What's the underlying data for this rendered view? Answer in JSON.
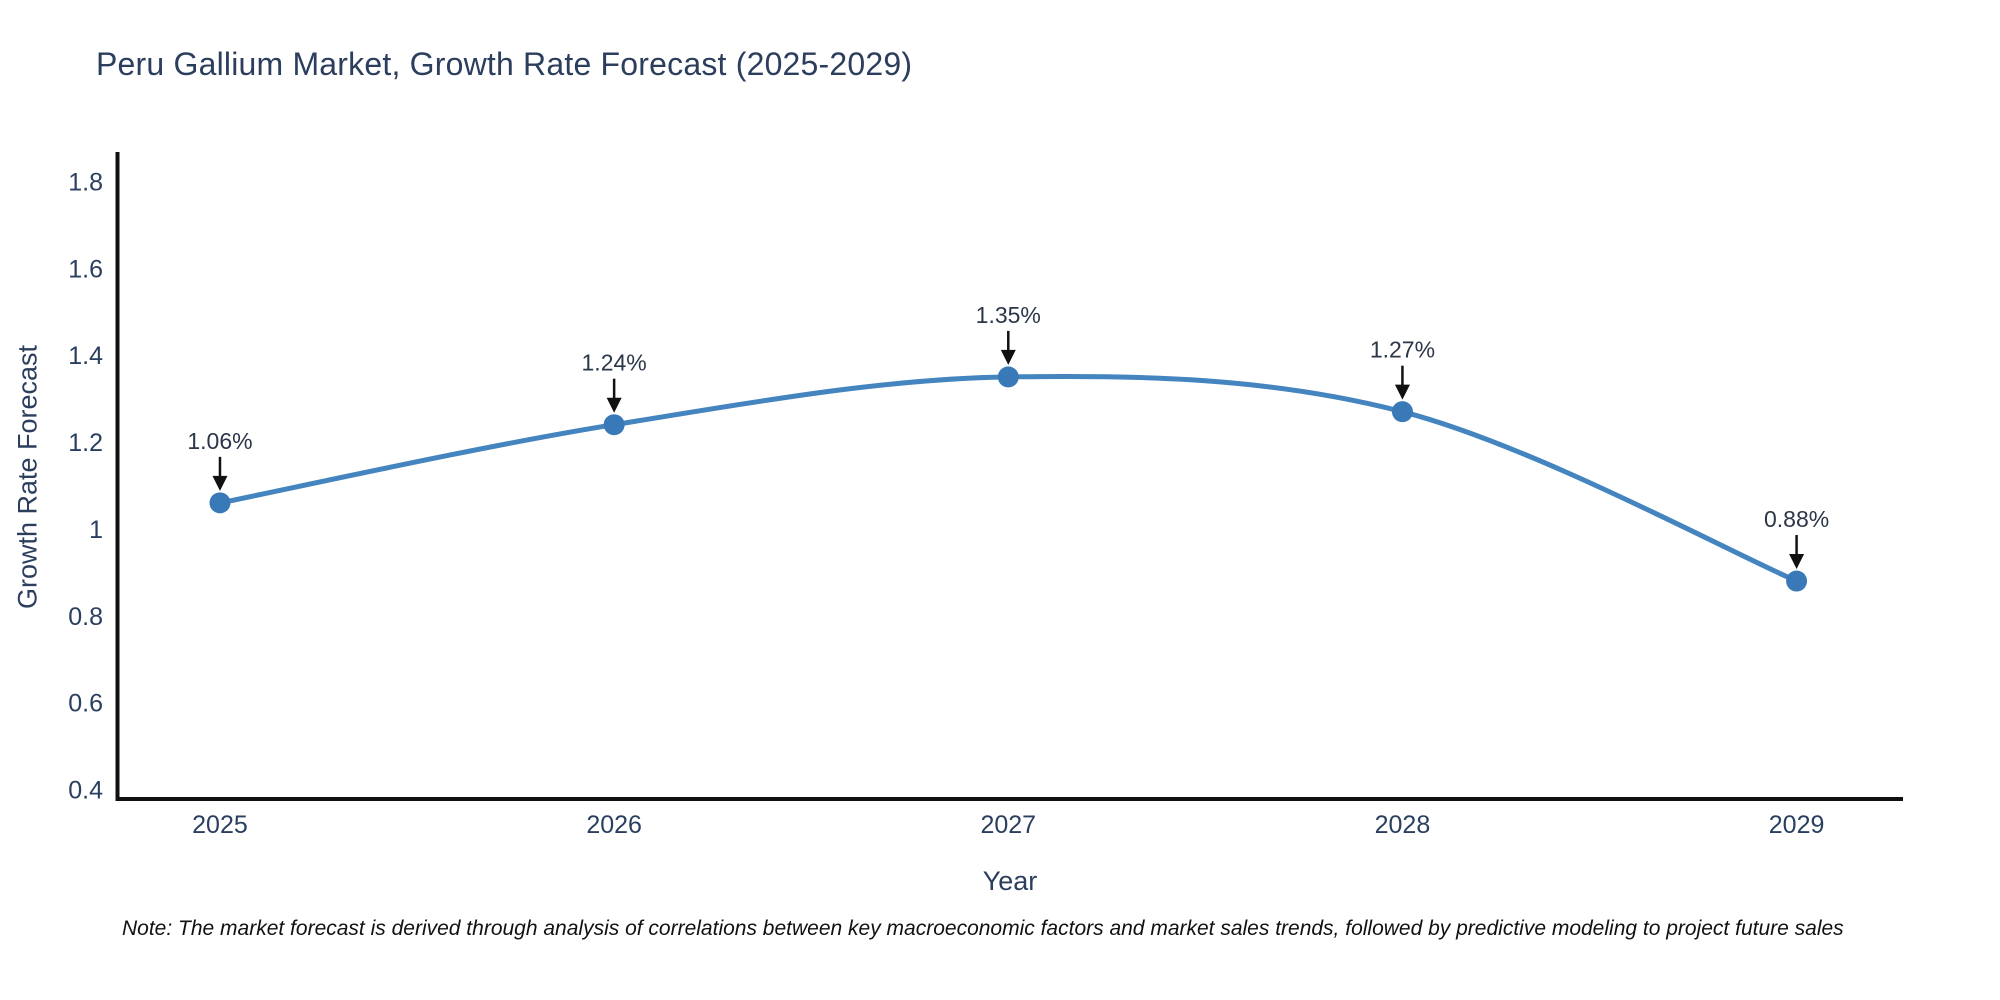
{
  "note": "Note: The market forecast is derived through analysis of correlations between key macroeconomic factors and market sales trends, followed by predictive modeling to project future sales",
  "chart_data": {
    "type": "line",
    "title": "Peru Gallium Market, Growth Rate Forecast (2025-2029)",
    "xlabel": "Year",
    "ylabel": "Growth Rate Forecast",
    "x": [
      2025,
      2026,
      2027,
      2028,
      2029
    ],
    "y": [
      1.06,
      1.24,
      1.35,
      1.27,
      0.88
    ],
    "point_labels": [
      "1.06%",
      "1.24%",
      "1.35%",
      "1.27%",
      "0.88%"
    ],
    "xtick_labels": [
      "2025",
      "2026",
      "2027",
      "2028",
      "2029"
    ],
    "ytick_labels": [
      "0.4",
      "0.6",
      "0.8",
      "1",
      "1.2",
      "1.4",
      "1.6",
      "1.8"
    ],
    "xlim": [
      2024.74,
      2029.27
    ],
    "ylim": [
      0.378,
      1.868
    ],
    "line_shape": "spline",
    "grid": false,
    "legend_position": "none",
    "colors": {
      "line": "#4484bf",
      "marker": "#3a79b8",
      "axis": "#111111",
      "arrow": "#111111",
      "tick_text": "#2a3f5f",
      "annotation_text": "#2b3648",
      "title_text": "#2c3e5d"
    }
  }
}
